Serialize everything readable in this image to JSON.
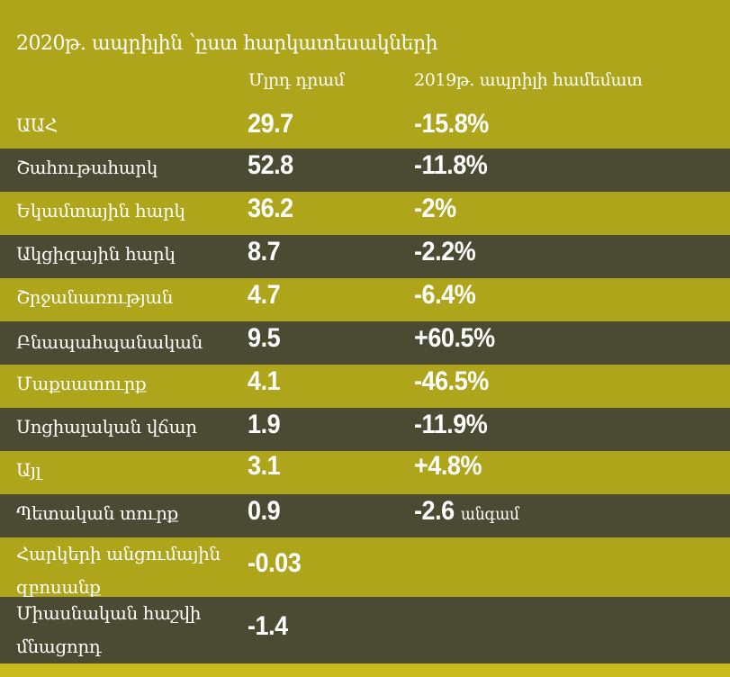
{
  "title": "2020թ. ապրիլին ՝ըստ հարկատեսակների",
  "col_headers": {
    "value": "Մլրդ դրամ",
    "change": "2019թ. ապրիլի համեմատ"
  },
  "colors": {
    "olive": "#aea51a",
    "dark": "#4b4a32",
    "text": "#ffffff"
  },
  "chart_data": {
    "type": "table",
    "title": "2020թ. ապրիլին ՝ըստ հարկատեսակների",
    "columns": [
      "",
      "Մլրդ դրամ",
      "2019թ. ապրիլի համեմատ"
    ],
    "rows": [
      {
        "label": "ԱԱՀ",
        "value": "29.7",
        "change": "-15.8%",
        "suffix": ""
      },
      {
        "label": "Շահութահարկ",
        "value": "52.8",
        "change": "-11.8%",
        "suffix": ""
      },
      {
        "label": "Եկամտային հարկ",
        "value": "36.2",
        "change": "-2%",
        "suffix": ""
      },
      {
        "label": "Ակցիզային հարկ",
        "value": "8.7",
        "change": "-2.2%",
        "suffix": ""
      },
      {
        "label": "Շրջանառության",
        "value": "4.7",
        "change": "-6.4%",
        "suffix": ""
      },
      {
        "label": "Բնապահպանական",
        "value": "9.5",
        "change": "+60.5%",
        "suffix": ""
      },
      {
        "label": "Մաքսատուրք",
        "value": "4.1",
        "change": "-46.5%",
        "suffix": ""
      },
      {
        "label": "Սոցիալական վճար",
        "value": "1.9",
        "change": "-11.9%",
        "suffix": ""
      },
      {
        "label": "Այլ",
        "value": "3.1",
        "change": "+4.8%",
        "suffix": ""
      },
      {
        "label": "Պետական տուրք",
        "value": "0.9",
        "change": "-2.6",
        "suffix": "անգամ"
      },
      {
        "label": "Հարկերի անցումային զբոսանք",
        "value": "-0.03",
        "change": "",
        "suffix": ""
      },
      {
        "label": "Միասնական հաշվի մնացորդ",
        "value": "-1.4",
        "change": "",
        "suffix": ""
      }
    ]
  }
}
